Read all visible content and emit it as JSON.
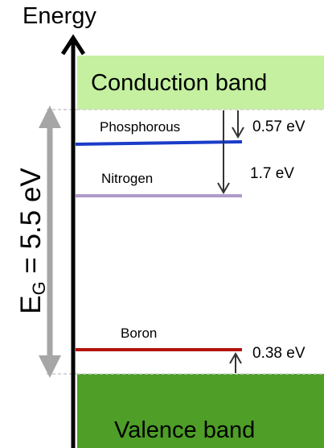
{
  "axis": {
    "title": "Energy"
  },
  "bands": {
    "conduction": {
      "label": "Conduction band",
      "color": "#c4f0a0"
    },
    "valence": {
      "label": "Valence band",
      "color": "#4e9e28"
    }
  },
  "band_gap": {
    "symbol": "E",
    "subscript": "G",
    "value_text": " = 5.5 eV",
    "value_ev": 5.5,
    "arrow_color": "#a6a6a6"
  },
  "levels": [
    {
      "name": "Phosphorous",
      "energy_label": "0.57 eV",
      "ev_from_edge": 0.57,
      "reference": "conduction",
      "color": "#1a3cc8"
    },
    {
      "name": "Nitrogen",
      "energy_label": "1.7 eV",
      "ev_from_edge": 1.7,
      "reference": "conduction",
      "color": "#b09acb"
    },
    {
      "name": "Boron",
      "energy_label": "0.38 eV",
      "ev_from_edge": 0.38,
      "reference": "valence",
      "color": "#b3140f"
    }
  ]
}
